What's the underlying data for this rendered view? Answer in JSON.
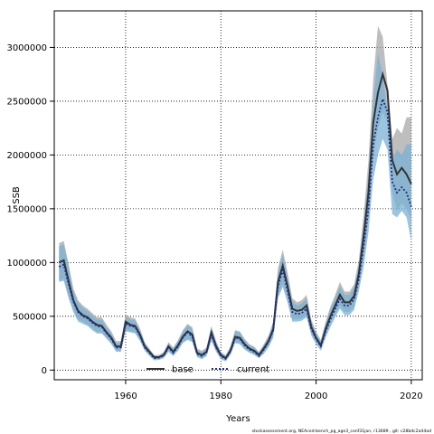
{
  "chart_data": {
    "type": "line",
    "xlabel": "Years",
    "ylabel": "SSB",
    "xlim": [
      1945,
      2022.3
    ],
    "ylim": [
      -90000,
      3340000
    ],
    "xticks": [
      1960,
      1980,
      2000,
      2020
    ],
    "yticks": [
      0,
      500000,
      1000000,
      1500000,
      2000000,
      2500000,
      3000000
    ],
    "xtick_labels": [
      "1960",
      "1980",
      "2000",
      "2020"
    ],
    "ytick_labels": [
      "0",
      "500000",
      "1000000",
      "1500000",
      "2000000",
      "2500000",
      "3000000"
    ],
    "grid": true,
    "grid_style": "dotted",
    "legend": {
      "placement": "bottom-left",
      "entries": [
        "base",
        "current"
      ]
    },
    "x": [
      1946,
      1947,
      1948,
      1949,
      1950,
      1951,
      1952,
      1953,
      1954,
      1955,
      1956,
      1957,
      1958,
      1959,
      1960,
      1961,
      1962,
      1963,
      1964,
      1965,
      1966,
      1967,
      1968,
      1969,
      1970,
      1971,
      1972,
      1973,
      1974,
      1975,
      1976,
      1977,
      1978,
      1979,
      1980,
      1981,
      1982,
      1983,
      1984,
      1985,
      1986,
      1987,
      1988,
      1989,
      1990,
      1991,
      1992,
      1993,
      1994,
      1995,
      1996,
      1997,
      1998,
      1999,
      2000,
      2001,
      2002,
      2003,
      2004,
      2005,
      2006,
      2007,
      2008,
      2009,
      2010,
      2011,
      2012,
      2013,
      2014,
      2015,
      2016,
      2017,
      2018,
      2019,
      2020
    ],
    "series": [
      {
        "name": "base",
        "color": "#333333",
        "band_color": "#a8a8a8",
        "values": [
          1000000,
          1020000,
          830000,
          650000,
          550000,
          510000,
          490000,
          450000,
          420000,
          410000,
          350000,
          300000,
          220000,
          220000,
          450000,
          420000,
          410000,
          330000,
          220000,
          170000,
          120000,
          120000,
          140000,
          220000,
          170000,
          230000,
          310000,
          360000,
          330000,
          160000,
          140000,
          170000,
          350000,
          220000,
          140000,
          110000,
          180000,
          310000,
          300000,
          240000,
          200000,
          180000,
          140000,
          200000,
          270000,
          380000,
          820000,
          970000,
          780000,
          570000,
          550000,
          560000,
          600000,
          400000,
          300000,
          230000,
          380000,
          500000,
          600000,
          700000,
          630000,
          630000,
          690000,
          900000,
          1250000,
          1650000,
          2300000,
          2580000,
          2750000,
          2600000,
          1950000,
          1820000,
          1880000,
          1820000,
          1730000
        ],
        "lower": [
          830000,
          850000,
          690000,
          560000,
          470000,
          450000,
          420000,
          390000,
          350000,
          350000,
          300000,
          250000,
          180000,
          180000,
          380000,
          360000,
          350000,
          280000,
          190000,
          140000,
          100000,
          100000,
          120000,
          180000,
          140000,
          190000,
          260000,
          290000,
          270000,
          130000,
          110000,
          140000,
          290000,
          180000,
          110000,
          90000,
          150000,
          260000,
          250000,
          200000,
          170000,
          150000,
          120000,
          160000,
          220000,
          320000,
          700000,
          800000,
          660000,
          470000,
          470000,
          480000,
          510000,
          340000,
          250000,
          200000,
          320000,
          430000,
          510000,
          600000,
          540000,
          540000,
          590000,
          780000,
          1050000,
          1400000,
          1970000,
          2250000,
          2400000,
          2300000,
          1650000,
          1480000,
          1550000,
          1500000,
          1400000
        ],
        "upper": [
          1180000,
          1200000,
          990000,
          760000,
          650000,
          600000,
          570000,
          530000,
          490000,
          490000,
          420000,
          360000,
          270000,
          270000,
          520000,
          490000,
          480000,
          390000,
          260000,
          200000,
          140000,
          140000,
          170000,
          260000,
          210000,
          280000,
          370000,
          430000,
          400000,
          200000,
          180000,
          210000,
          410000,
          270000,
          170000,
          140000,
          220000,
          370000,
          360000,
          290000,
          240000,
          220000,
          170000,
          240000,
          320000,
          450000,
          950000,
          1120000,
          910000,
          670000,
          630000,
          650000,
          700000,
          470000,
          360000,
          280000,
          450000,
          590000,
          700000,
          820000,
          730000,
          730000,
          800000,
          1030000,
          1450000,
          1950000,
          2700000,
          3200000,
          3100000,
          2650000,
          2150000,
          2250000,
          2200000,
          2350000,
          2350000
        ]
      },
      {
        "name": "current",
        "color": "#1f2e8c",
        "band_color": "#7ab2d4",
        "values": [
          960000,
          980000,
          800000,
          640000,
          540000,
          500000,
          480000,
          440000,
          410000,
          400000,
          340000,
          290000,
          210000,
          210000,
          430000,
          410000,
          400000,
          320000,
          210000,
          160000,
          110000,
          115000,
          135000,
          210000,
          160000,
          220000,
          300000,
          350000,
          310000,
          150000,
          130000,
          165000,
          330000,
          210000,
          130000,
          105000,
          170000,
          300000,
          290000,
          230000,
          190000,
          170000,
          130000,
          190000,
          260000,
          370000,
          780000,
          930000,
          740000,
          540000,
          520000,
          530000,
          570000,
          380000,
          290000,
          220000,
          360000,
          470000,
          570000,
          660000,
          600000,
          600000,
          660000,
          850000,
          1150000,
          1500000,
          2100000,
          2350000,
          2520000,
          2400000,
          1750000,
          1650000,
          1700000,
          1650000,
          1520000
        ],
        "lower": [
          820000,
          830000,
          670000,
          540000,
          450000,
          430000,
          410000,
          370000,
          340000,
          340000,
          290000,
          240000,
          170000,
          170000,
          360000,
          350000,
          340000,
          270000,
          180000,
          130000,
          90000,
          95000,
          110000,
          170000,
          130000,
          180000,
          250000,
          280000,
          260000,
          120000,
          100000,
          130000,
          270000,
          170000,
          100000,
          80000,
          140000,
          250000,
          240000,
          190000,
          160000,
          140000,
          110000,
          150000,
          210000,
          300000,
          670000,
          770000,
          630000,
          450000,
          450000,
          460000,
          490000,
          320000,
          240000,
          180000,
          300000,
          400000,
          490000,
          570000,
          510000,
          510000,
          560000,
          740000,
          960000,
          1280000,
          1770000,
          2000000,
          2150000,
          2050000,
          1450000,
          1420000,
          1480000,
          1420000,
          1200000
        ],
        "upper": [
          1150000,
          1170000,
          960000,
          740000,
          630000,
          580000,
          550000,
          510000,
          470000,
          470000,
          400000,
          340000,
          250000,
          250000,
          500000,
          470000,
          460000,
          370000,
          250000,
          190000,
          130000,
          135000,
          160000,
          250000,
          200000,
          270000,
          360000,
          420000,
          380000,
          190000,
          170000,
          200000,
          400000,
          260000,
          160000,
          130000,
          210000,
          360000,
          350000,
          280000,
          230000,
          210000,
          160000,
          230000,
          310000,
          440000,
          910000,
          1080000,
          870000,
          640000,
          600000,
          620000,
          670000,
          450000,
          340000,
          270000,
          430000,
          570000,
          670000,
          780000,
          700000,
          700000,
          770000,
          990000,
          1380000,
          1830000,
          2500000,
          2950000,
          2750000,
          2400000,
          1950000,
          2050000,
          2000000,
          2100000,
          2100000
        ]
      }
    ],
    "footnote": "stockassessment.org, NEAcod-bench_pg_age3_conf31jan, r13689 , git: c28bdc2a44ad"
  }
}
